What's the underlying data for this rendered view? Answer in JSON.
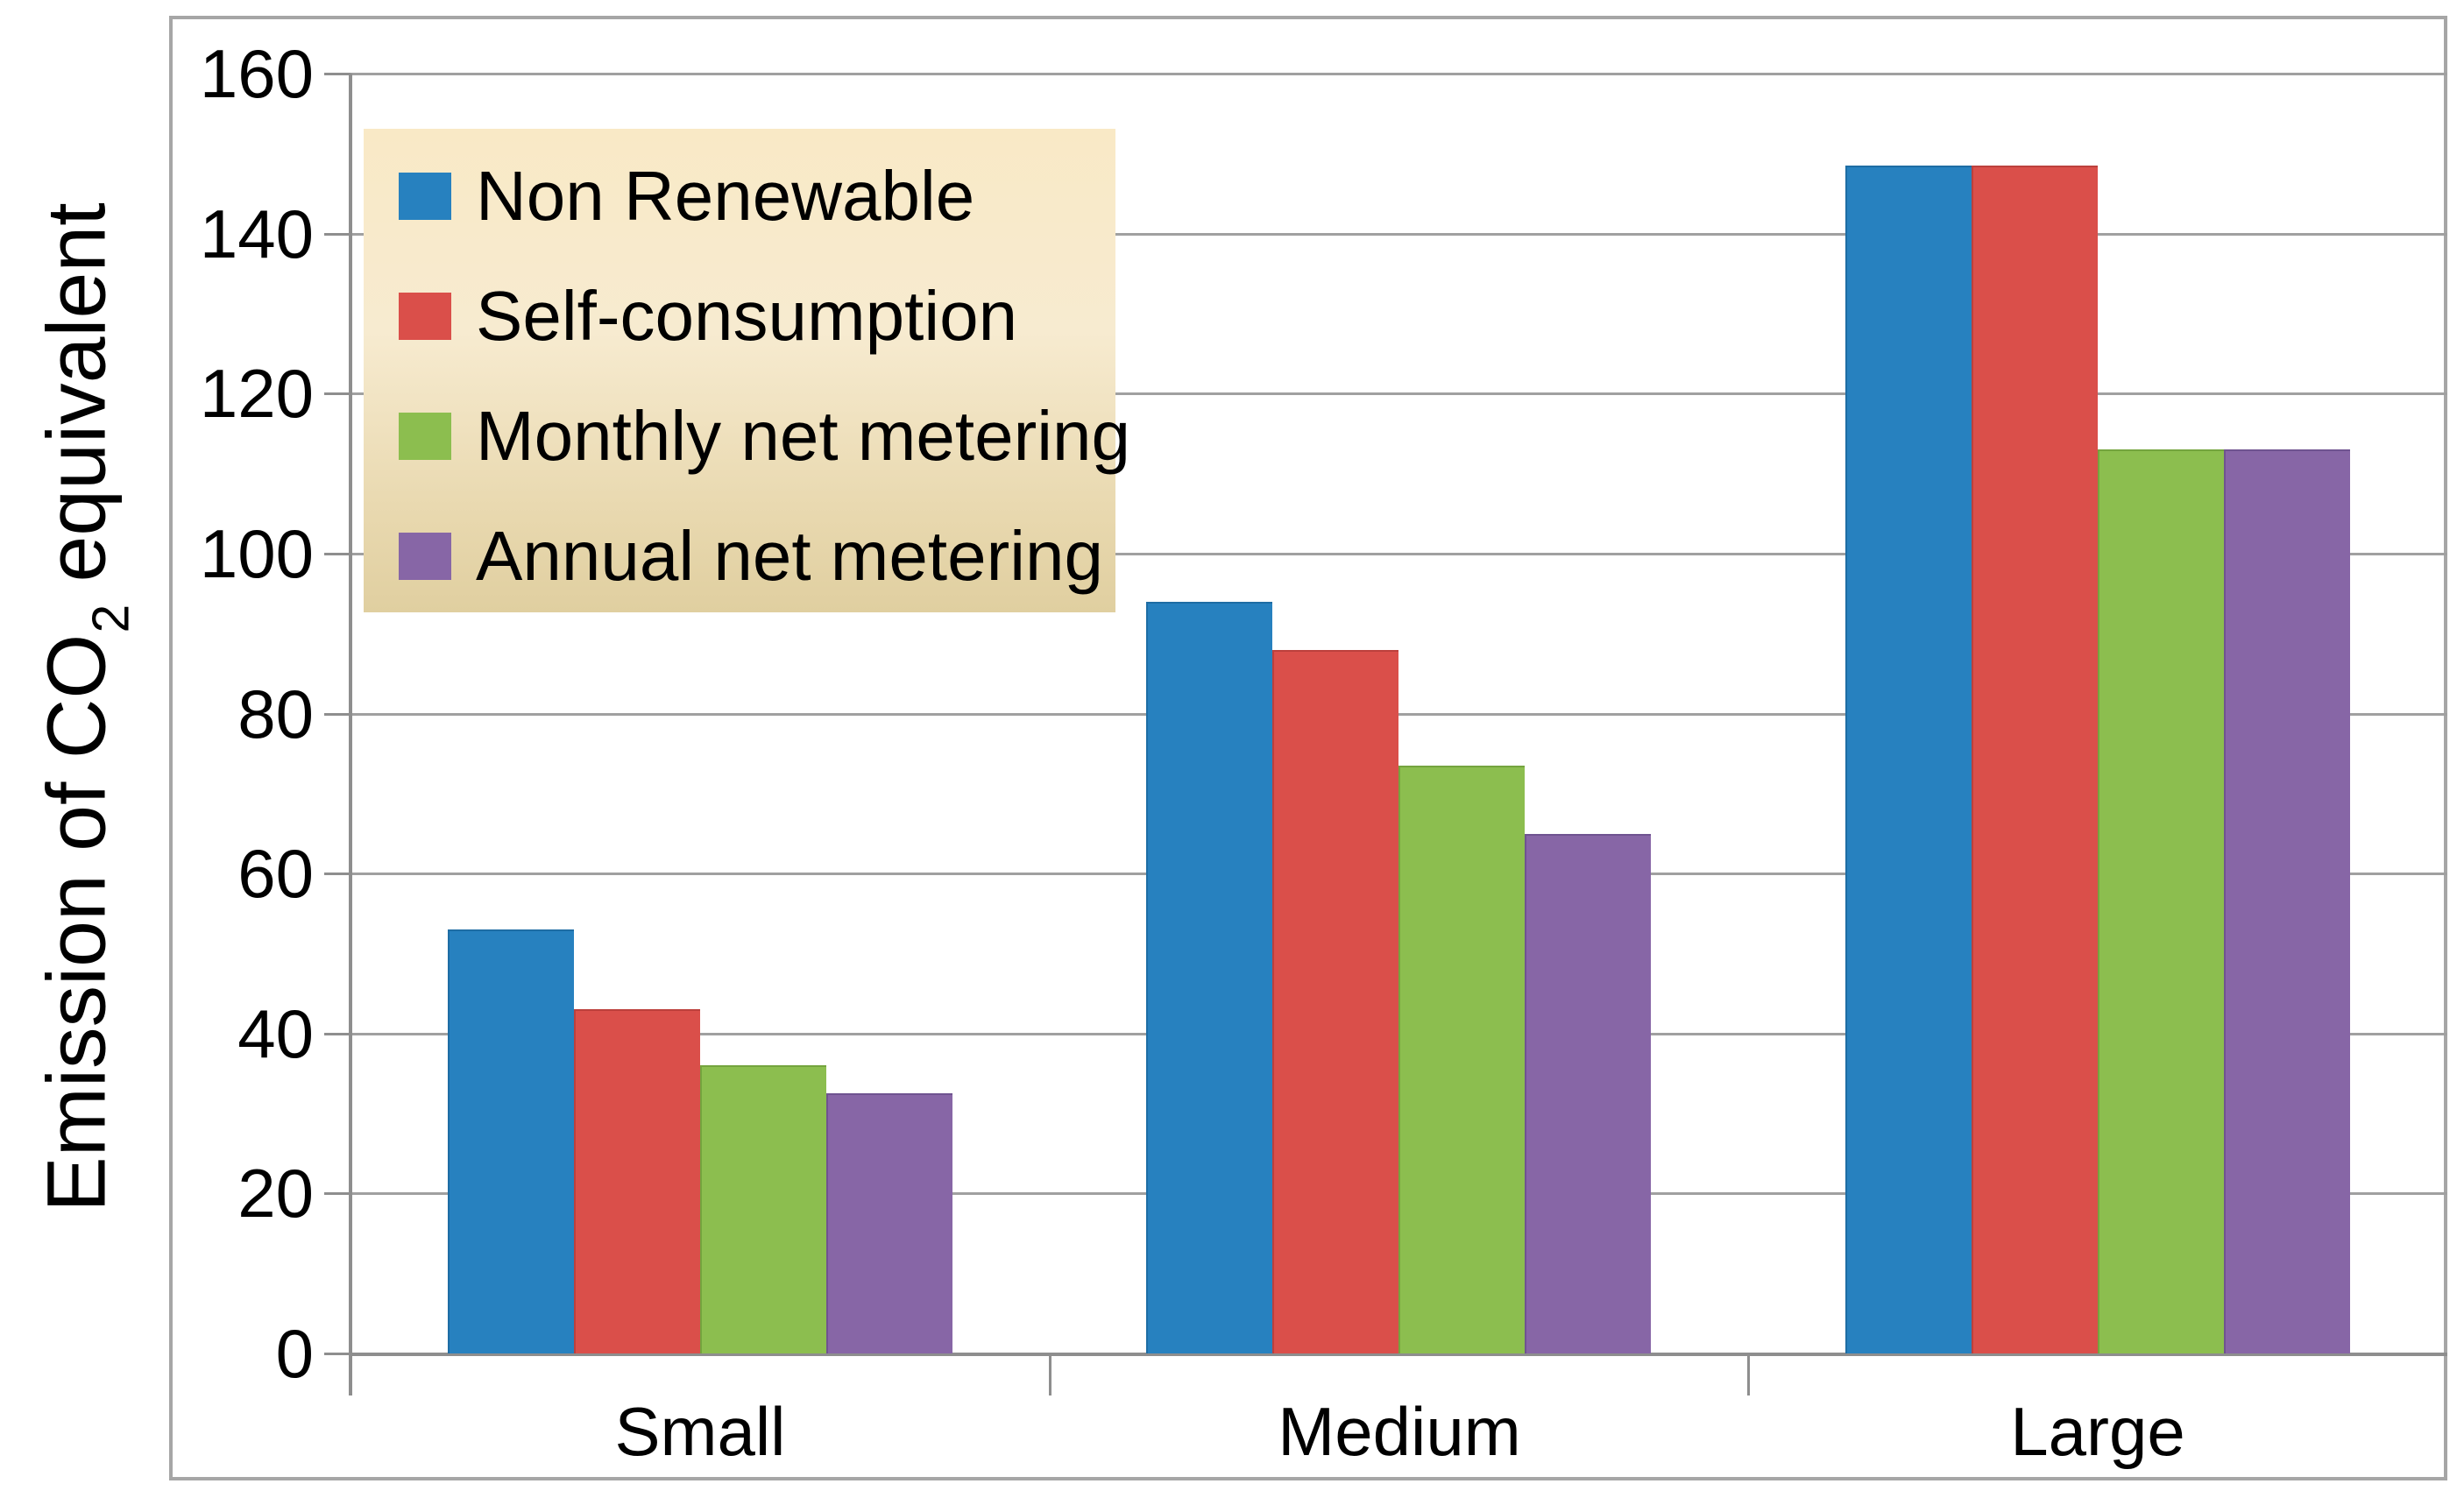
{
  "chart_data": {
    "type": "bar",
    "title": "",
    "ylabel_parts": {
      "prefix": "Emission of CO",
      "sub": "2",
      "suffix": " equivalent"
    },
    "xlabel": "",
    "categories": [
      "Small",
      "Medium",
      "Large"
    ],
    "series": [
      {
        "name": "Non Renewable",
        "color": "#2781bf",
        "border_color": "#1e6da4",
        "values": [
          53.0,
          94.0,
          148.5
        ]
      },
      {
        "name": "Self-consumption",
        "color": "#da4f4a",
        "border_color": "#bc403c",
        "values": [
          43.0,
          88.0,
          148.5
        ]
      },
      {
        "name": "Monthly net metering",
        "color": "#8cbe4f",
        "border_color": "#74a43e",
        "values": [
          36.0,
          73.5,
          113.0
        ]
      },
      {
        "name": "Annual net metering",
        "color": "#8766a6",
        "border_color": "#6f5390",
        "values": [
          32.5,
          65.0,
          113.0
        ]
      }
    ],
    "ylim": [
      0,
      160
    ],
    "yticks": [
      0,
      20,
      40,
      60,
      80,
      100,
      120,
      140,
      160
    ],
    "grid": true,
    "legend_position": "top-left"
  },
  "colors": {
    "background": "#ffffff",
    "frame_border": "#a6a6a6",
    "gridline": "#a0a0a0",
    "axis": "#8e8e8e",
    "text": "#000000",
    "legend_gradient_top": "#f9e9c6",
    "legend_gradient_bottom": "#e0cfa0"
  }
}
